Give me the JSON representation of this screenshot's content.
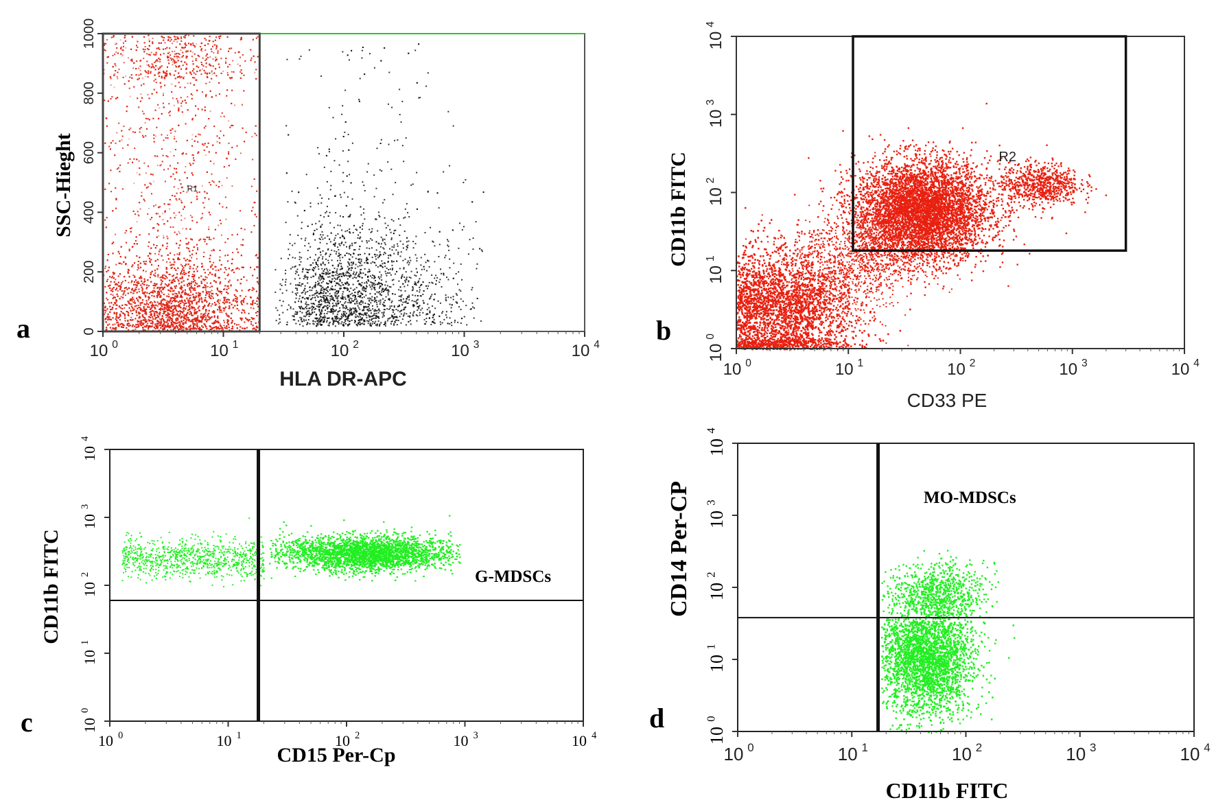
{
  "chart_data": [
    {
      "type": "scatter",
      "panel_label": "a",
      "xlabel": "HLA DR-APC",
      "ylabel": "SSC-Hieght",
      "x_scale": "log",
      "xlim": [
        1,
        10000
      ],
      "ylim": [
        0,
        1000
      ],
      "x_ticks": [
        1,
        10,
        100,
        1000,
        10000
      ],
      "x_tick_labels": [
        "10",
        "10",
        "10",
        "10",
        "10"
      ],
      "x_tick_exponents": [
        "0",
        "1",
        "2",
        "3",
        "4"
      ],
      "y_ticks": [
        0,
        200,
        400,
        600,
        800,
        1000
      ],
      "y_tick_labels": [
        "0",
        "200",
        "400",
        "600",
        "800",
        "1000"
      ],
      "gates": [
        {
          "label": "R1",
          "x": [
            1,
            20
          ],
          "y": [
            0,
            1000
          ]
        }
      ],
      "series": [
        {
          "color": "#e02818",
          "x_range": [
            1,
            20
          ],
          "y_range": [
            0,
            1000
          ],
          "center": [
            4,
            60
          ],
          "count": 9000
        },
        {
          "color": "#111111",
          "x_range": [
            22,
            1500
          ],
          "y_range": [
            0,
            980
          ],
          "center": [
            60,
            80
          ],
          "count": 2200
        }
      ],
      "colors": {
        "gated": "#e02818",
        "ungated": "#111111",
        "gate_top": "#22cc22"
      }
    },
    {
      "type": "scatter",
      "panel_label": "b",
      "xlabel": "CD33 PE",
      "ylabel": "CD11b FITC",
      "x_scale": "log",
      "y_scale": "log",
      "xlim": [
        1,
        10000
      ],
      "ylim": [
        1,
        10000
      ],
      "x_ticks": [
        1,
        10,
        100,
        1000,
        10000
      ],
      "x_tick_labels": [
        "10",
        "10",
        "10",
        "10",
        "10"
      ],
      "x_tick_exponents": [
        "0",
        "1",
        "2",
        "3",
        "4"
      ],
      "y_ticks": [
        1,
        10,
        100,
        1000,
        10000
      ],
      "y_tick_labels": [
        "10",
        "10",
        "10",
        "10",
        "10"
      ],
      "y_tick_exponents": [
        "0",
        "1",
        "2",
        "3",
        "4"
      ],
      "gates": [
        {
          "label": "R2",
          "x": [
            11,
            3000
          ],
          "y": [
            18,
            10000
          ]
        }
      ],
      "series": [
        {
          "color": "#e82010",
          "center": [
            2.5,
            3
          ],
          "count": 5000
        },
        {
          "color": "#e82010",
          "center": [
            45,
            60
          ],
          "count": 5000
        },
        {
          "color": "#e82010",
          "center": [
            500,
            130
          ],
          "count": 700
        }
      ],
      "colors": {
        "dots": "#e82010"
      }
    },
    {
      "type": "scatter",
      "panel_label": "c",
      "xlabel": "CD15 Per-Cp",
      "ylabel": "CD11b FITC",
      "x_scale": "log",
      "y_scale": "log",
      "xlim": [
        1,
        10000
      ],
      "ylim": [
        1,
        10000
      ],
      "x_ticks": [
        1,
        10,
        100,
        1000,
        10000
      ],
      "x_tick_labels": [
        "10",
        "10",
        "10",
        "10",
        "10"
      ],
      "x_tick_exponents": [
        "0",
        "1",
        "2",
        "3",
        "4"
      ],
      "y_ticks": [
        1,
        10,
        100,
        1000,
        10000
      ],
      "y_tick_labels": [
        "10",
        "10",
        "10",
        "10",
        "10"
      ],
      "y_tick_exponents": [
        "0",
        "1",
        "2",
        "3",
        "4"
      ],
      "quadrant_x": 18,
      "quadrant_y": 60,
      "annotation": "G-MDSCs",
      "series": [
        {
          "color": "#22ee22",
          "center": [
            150,
            300
          ],
          "count": 5500
        },
        {
          "color": "#22ee22",
          "center": [
            8,
            250
          ],
          "count": 900
        }
      ],
      "colors": {
        "dots": "#22ee22"
      }
    },
    {
      "type": "scatter",
      "panel_label": "d",
      "xlabel": "CD11b FITC",
      "ylabel": "CD14 Per-CP",
      "x_scale": "log",
      "y_scale": "log",
      "xlim": [
        1,
        10000
      ],
      "ylim": [
        1,
        10000
      ],
      "x_ticks": [
        1,
        10,
        100,
        1000,
        10000
      ],
      "x_tick_labels": [
        "10",
        "10",
        "10",
        "10",
        "10"
      ],
      "x_tick_exponents": [
        "0",
        "1",
        "2",
        "3",
        "4"
      ],
      "y_ticks": [
        1,
        10,
        100,
        1000,
        10000
      ],
      "y_tick_labels": [
        "10",
        "10",
        "10",
        "10",
        "10"
      ],
      "y_tick_exponents": [
        "0",
        "1",
        "2",
        "3",
        "4"
      ],
      "quadrant_x": 17,
      "quadrant_y": 38,
      "annotation": "MO-MDSCs",
      "series": [
        {
          "color": "#22ee22",
          "center": [
            55,
            80
          ],
          "count": 900
        },
        {
          "color": "#22ee22",
          "center": [
            45,
            10
          ],
          "count": 3800
        }
      ],
      "colors": {
        "dots": "#22ee22"
      }
    }
  ]
}
